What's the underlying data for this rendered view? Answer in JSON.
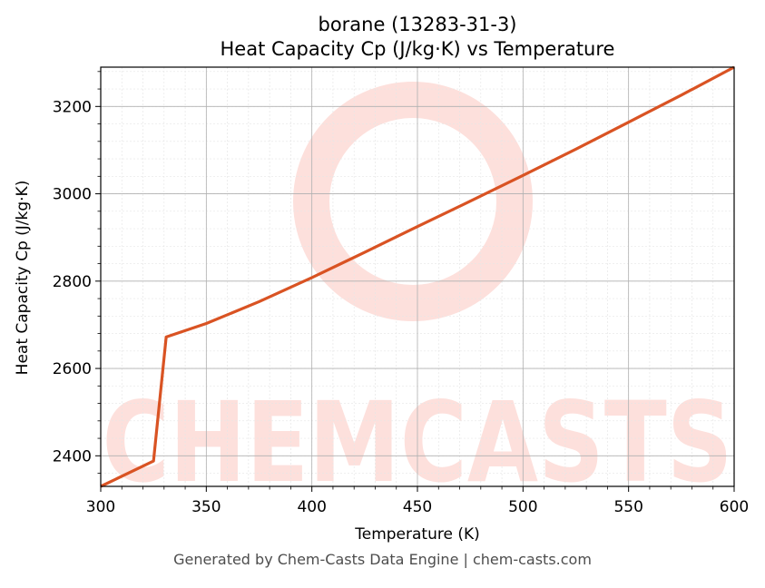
{
  "chart_data": {
    "type": "line",
    "title": "borane (13283-31-3)",
    "subtitle": "Heat Capacity Cp (J/kg·K) vs Temperature",
    "xlabel": "Temperature (K)",
    "ylabel": "Heat Capacity Cp (J/kg·K)",
    "xlim": [
      300,
      600
    ],
    "ylim": [
      2330,
      3290
    ],
    "xticks": [
      300,
      350,
      400,
      450,
      500,
      550,
      600
    ],
    "yticks": [
      2400,
      2600,
      2800,
      3000,
      3200
    ],
    "grid": true,
    "legend": "none",
    "series": [
      {
        "color": "#d95323",
        "x": [
          300,
          325,
          331,
          350,
          375,
          400,
          425,
          450,
          475,
          500,
          525,
          550,
          575,
          600
        ],
        "y": [
          2330,
          2388,
          2672,
          2703,
          2753,
          2808,
          2866,
          2925,
          2983,
          3042,
          3102,
          3164,
          3226,
          3290
        ]
      }
    ]
  },
  "watermark": {
    "text": "CHEMCASTS",
    "color": "#fde0dc"
  },
  "footer": {
    "text": "Generated by Chem-Casts Data Engine | chem-casts.com"
  }
}
